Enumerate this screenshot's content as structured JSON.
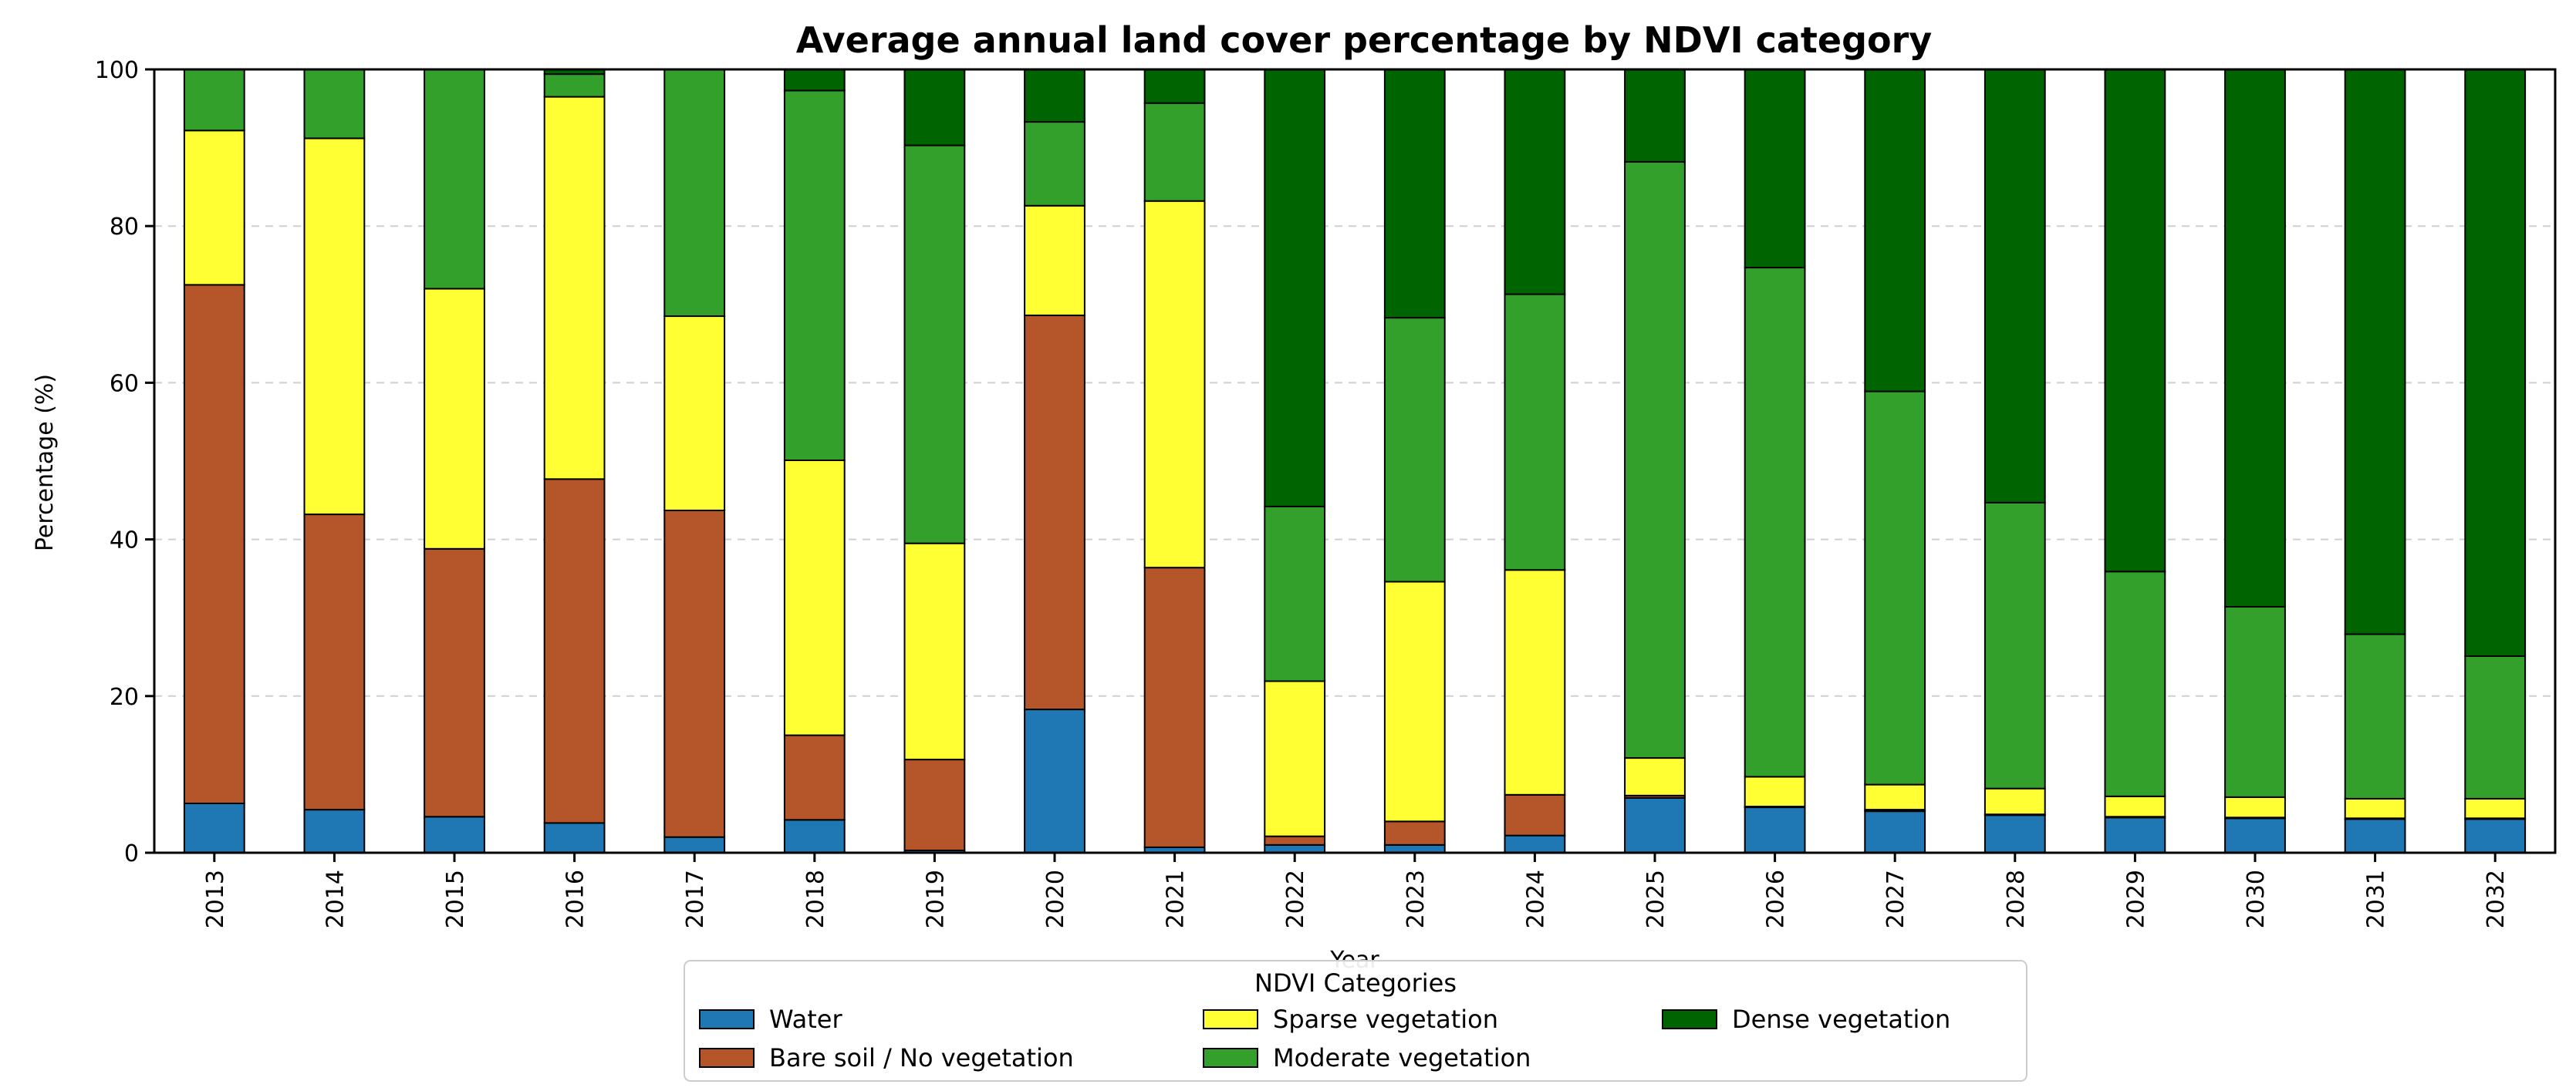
{
  "chart_data": {
    "type": "bar",
    "stacked": true,
    "title": "Average annual land cover percentage by NDVI category",
    "xlabel": "Year",
    "ylabel": "Percentage (%)",
    "ylim": [
      0,
      100
    ],
    "yticks": [
      0,
      20,
      40,
      60,
      80,
      100
    ],
    "grid": "y-dashed",
    "categories": [
      "2013",
      "2014",
      "2015",
      "2016",
      "2017",
      "2018",
      "2019",
      "2020",
      "2021",
      "2022",
      "2023",
      "2024",
      "2025",
      "2026",
      "2027",
      "2028",
      "2029",
      "2030",
      "2031",
      "2032"
    ],
    "series": [
      {
        "name": "Water",
        "color": "#1f77b4",
        "values": [
          6.3,
          5.5,
          4.6,
          3.8,
          2.0,
          4.2,
          0.3,
          18.3,
          0.7,
          1.0,
          1.0,
          2.2,
          7.0,
          5.8,
          5.3,
          4.8,
          4.5,
          4.4,
          4.3,
          4.3
        ]
      },
      {
        "name": "Bare soil / No vegetation",
        "color": "#b5552a",
        "values": [
          66.2,
          37.7,
          34.2,
          43.9,
          41.7,
          10.8,
          11.6,
          50.3,
          35.7,
          1.1,
          3.0,
          5.2,
          0.3,
          0.1,
          0.2,
          0.1,
          0.1,
          0.1,
          0.1,
          0.1
        ]
      },
      {
        "name": "Sparse vegetation",
        "color": "#ffff33",
        "values": [
          19.7,
          48.0,
          33.2,
          48.8,
          24.8,
          35.1,
          27.6,
          14.0,
          46.8,
          19.8,
          30.6,
          28.7,
          4.8,
          3.8,
          3.2,
          3.3,
          2.6,
          2.6,
          2.5,
          2.5
        ]
      },
      {
        "name": "Moderate vegetation",
        "color": "#33a02c",
        "values": [
          7.8,
          8.8,
          28.0,
          2.9,
          31.5,
          47.2,
          50.8,
          10.7,
          12.5,
          22.3,
          33.7,
          35.2,
          76.1,
          65.0,
          50.2,
          36.5,
          28.7,
          24.3,
          21.0,
          18.2
        ]
      },
      {
        "name": "Dense vegetation",
        "color": "#006400",
        "values": [
          0.0,
          0.0,
          0.0,
          0.6,
          0.0,
          2.7,
          9.7,
          6.7,
          4.3,
          55.8,
          31.7,
          28.7,
          11.8,
          25.3,
          41.1,
          55.3,
          64.1,
          68.6,
          72.1,
          74.9
        ]
      }
    ],
    "legend": {
      "title": "NDVI Categories",
      "placement": "bottom-center"
    }
  }
}
